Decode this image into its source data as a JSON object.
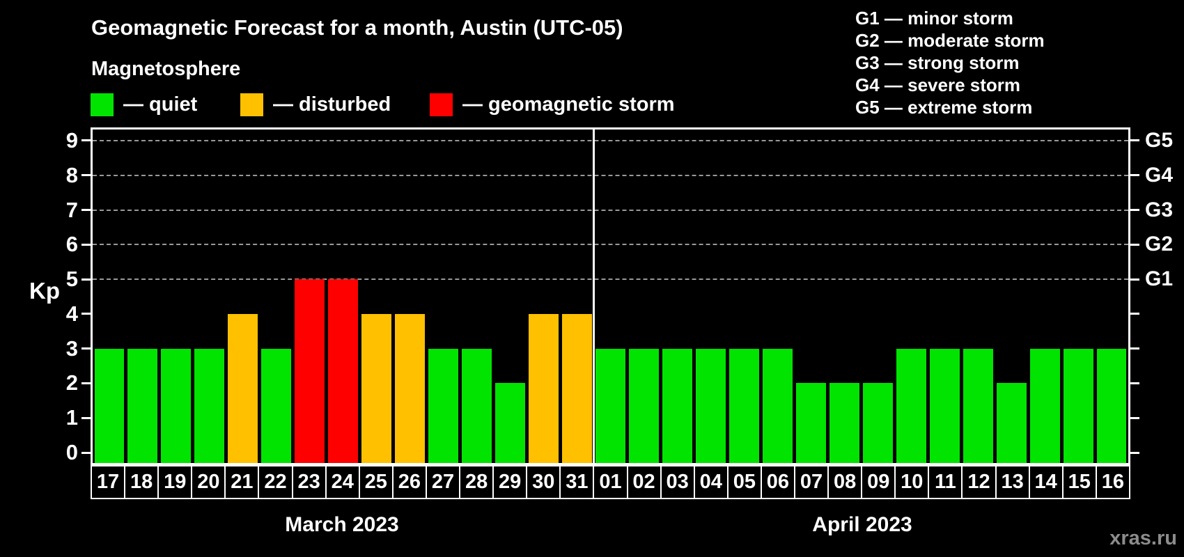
{
  "title": "Geomagnetic Forecast for a month, Austin (UTC-05)",
  "subtitle": "Magnetosphere",
  "watermark": "xras.ru",
  "axis": {
    "kp_label": "Kp",
    "yticks": [
      0,
      1,
      2,
      3,
      4,
      5,
      6,
      7,
      8,
      9
    ],
    "gridlines_at": [
      5,
      6,
      7,
      8,
      9
    ],
    "right_labels": [
      {
        "kp": 5,
        "label": "G1"
      },
      {
        "kp": 6,
        "label": "G2"
      },
      {
        "kp": 7,
        "label": "G3"
      },
      {
        "kp": 8,
        "label": "G4"
      },
      {
        "kp": 9,
        "label": "G5"
      }
    ]
  },
  "legend": [
    {
      "key": "quiet",
      "label": "— quiet",
      "color": "#00e400"
    },
    {
      "key": "disturbed",
      "label": "— disturbed",
      "color": "#ffc000"
    },
    {
      "key": "storm",
      "label": "— geomagnetic storm",
      "color": "#ff0000"
    }
  ],
  "g_scale_legend": [
    "G1 — minor storm",
    "G2 — moderate storm",
    "G3 — strong storm",
    "G4 — severe storm",
    "G5 — extreme storm"
  ],
  "chart_data": {
    "type": "bar",
    "title": "Geomagnetic Forecast for a month, Austin (UTC-05)",
    "ylabel": "Kp",
    "ylim": [
      0,
      9
    ],
    "yticks": [
      0,
      1,
      2,
      3,
      4,
      5,
      6,
      7,
      8,
      9
    ],
    "grid": "dashed horizontal at Kp 5-9",
    "status_colors": {
      "quiet": "#00e400",
      "disturbed": "#ffc000",
      "storm": "#ff0000"
    },
    "months": [
      {
        "key": "march",
        "name": "March 2023",
        "days": [
          {
            "day": "17",
            "kp": 3,
            "status": "quiet"
          },
          {
            "day": "18",
            "kp": 3,
            "status": "quiet"
          },
          {
            "day": "19",
            "kp": 3,
            "status": "quiet"
          },
          {
            "day": "20",
            "kp": 3,
            "status": "quiet"
          },
          {
            "day": "21",
            "kp": 4,
            "status": "disturbed"
          },
          {
            "day": "22",
            "kp": 3,
            "status": "quiet"
          },
          {
            "day": "23",
            "kp": 5,
            "status": "storm"
          },
          {
            "day": "24",
            "kp": 5,
            "status": "storm"
          },
          {
            "day": "25",
            "kp": 4,
            "status": "disturbed"
          },
          {
            "day": "26",
            "kp": 4,
            "status": "disturbed"
          },
          {
            "day": "27",
            "kp": 3,
            "status": "quiet"
          },
          {
            "day": "28",
            "kp": 3,
            "status": "quiet"
          },
          {
            "day": "29",
            "kp": 2,
            "status": "quiet"
          },
          {
            "day": "30",
            "kp": 4,
            "status": "disturbed"
          },
          {
            "day": "31",
            "kp": 4,
            "status": "disturbed"
          }
        ]
      },
      {
        "key": "april",
        "name": "April 2023",
        "days": [
          {
            "day": "01",
            "kp": 3,
            "status": "quiet"
          },
          {
            "day": "02",
            "kp": 3,
            "status": "quiet"
          },
          {
            "day": "03",
            "kp": 3,
            "status": "quiet"
          },
          {
            "day": "04",
            "kp": 3,
            "status": "quiet"
          },
          {
            "day": "05",
            "kp": 3,
            "status": "quiet"
          },
          {
            "day": "06",
            "kp": 3,
            "status": "quiet"
          },
          {
            "day": "07",
            "kp": 2,
            "status": "quiet"
          },
          {
            "day": "08",
            "kp": 2,
            "status": "quiet"
          },
          {
            "day": "09",
            "kp": 2,
            "status": "quiet"
          },
          {
            "day": "10",
            "kp": 3,
            "status": "quiet"
          },
          {
            "day": "11",
            "kp": 3,
            "status": "quiet"
          },
          {
            "day": "12",
            "kp": 3,
            "status": "quiet"
          },
          {
            "day": "13",
            "kp": 2,
            "status": "quiet"
          },
          {
            "day": "14",
            "kp": 3,
            "status": "quiet"
          },
          {
            "day": "15",
            "kp": 3,
            "status": "quiet"
          },
          {
            "day": "16",
            "kp": 3,
            "status": "quiet"
          }
        ]
      }
    ]
  }
}
